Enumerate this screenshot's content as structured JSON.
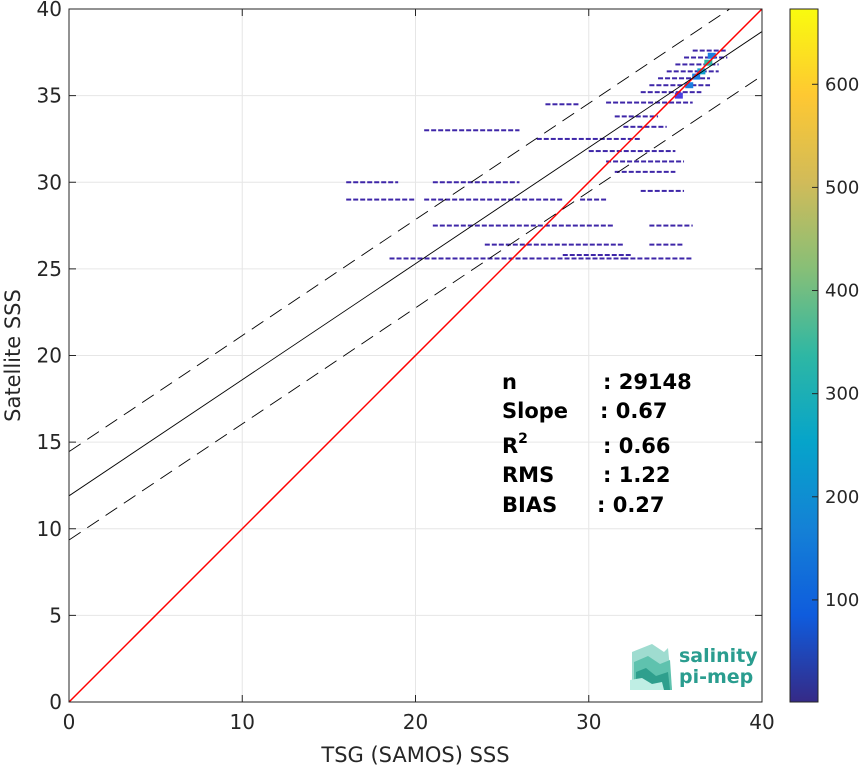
{
  "chart_data": {
    "type": "heatmap",
    "xlabel": "TSG (SAMOS) SSS",
    "ylabel": "Satellite SSS",
    "xlim": [
      0,
      40
    ],
    "ylim": [
      0,
      40
    ],
    "x_ticks": [
      0,
      10,
      20,
      30,
      40
    ],
    "y_ticks": [
      0,
      5,
      10,
      15,
      20,
      25,
      30,
      35,
      40
    ],
    "grid": true,
    "colorbar": {
      "range": [
        1,
        673
      ],
      "ticks": [
        100,
        200,
        300,
        400,
        500,
        600
      ],
      "colormap": "parula"
    },
    "lines": [
      {
        "name": "one-to-one",
        "slope": 1,
        "intercept": 0,
        "color": "#ff0000",
        "style": "solid"
      },
      {
        "name": "regression fit",
        "slope": 0.67,
        "intercept": 11.9,
        "color": "#000000",
        "style": "solid"
      },
      {
        "name": "upper bound",
        "slope": 0.67,
        "intercept": 14.45,
        "color": "#000000",
        "style": "dashed"
      },
      {
        "name": "lower bound",
        "slope": 0.67,
        "intercept": 9.35,
        "color": "#000000",
        "style": "dashed"
      }
    ],
    "segments": [
      {
        "x": [
          16.0,
          19.0
        ],
        "y": 30.0
      },
      {
        "x": [
          21.0,
          26.0
        ],
        "y": 30.0
      },
      {
        "x": [
          16.0,
          20.0
        ],
        "y": 29.0
      },
      {
        "x": [
          20.5,
          28.5
        ],
        "y": 29.0
      },
      {
        "x": [
          29.5,
          31.0
        ],
        "y": 29.0
      },
      {
        "x": [
          21.0,
          31.5
        ],
        "y": 27.5
      },
      {
        "x": [
          33.5,
          36.0
        ],
        "y": 27.5
      },
      {
        "x": [
          24.0,
          32.0
        ],
        "y": 26.4
      },
      {
        "x": [
          33.5,
          35.5
        ],
        "y": 26.4
      },
      {
        "x": [
          18.5,
          32.0
        ],
        "y": 25.6
      },
      {
        "x": [
          32.0,
          36.0
        ],
        "y": 25.6
      },
      {
        "x": [
          28.5,
          32.5
        ],
        "y": 25.8
      },
      {
        "x": [
          33.0,
          35.5
        ],
        "y": 29.5
      },
      {
        "x": [
          20.5,
          26.0
        ],
        "y": 33.0
      },
      {
        "x": [
          27.0,
          33.0
        ],
        "y": 32.5
      },
      {
        "x": [
          30.0,
          35.0
        ],
        "y": 31.8
      },
      {
        "x": [
          31.0,
          35.5
        ],
        "y": 31.2
      },
      {
        "x": [
          31.5,
          35.0
        ],
        "y": 30.6
      },
      {
        "x": [
          27.5,
          29.5
        ],
        "y": 34.5
      },
      {
        "x": [
          31.0,
          36.0
        ],
        "y": 34.6
      },
      {
        "x": [
          31.5,
          34.0
        ],
        "y": 33.8
      },
      {
        "x": [
          32.0,
          34.5
        ],
        "y": 33.2
      },
      {
        "x": [
          33.0,
          36.5
        ],
        "y": 35.2
      },
      {
        "x": [
          33.5,
          37.0
        ],
        "y": 35.6
      },
      {
        "x": [
          34.0,
          37.0
        ],
        "y": 36.0
      },
      {
        "x": [
          34.5,
          37.5
        ],
        "y": 36.4
      },
      {
        "x": [
          35.0,
          37.5
        ],
        "y": 36.8
      },
      {
        "x": [
          35.5,
          38.0
        ],
        "y": 37.2
      },
      {
        "x": [
          36.0,
          38.0
        ],
        "y": 37.6
      }
    ],
    "hot_cells": [
      {
        "x": 36.9,
        "y": 36.9,
        "count": 420
      },
      {
        "x": 36.5,
        "y": 36.4,
        "count": 260
      },
      {
        "x": 37.1,
        "y": 37.3,
        "count": 210
      },
      {
        "x": 35.8,
        "y": 35.6,
        "count": 150
      },
      {
        "x": 36.2,
        "y": 36.1,
        "count": 130
      },
      {
        "x": 35.2,
        "y": 35.0,
        "count": 90
      }
    ]
  },
  "stats": {
    "n": {
      "label": "n",
      "value": ": 29148"
    },
    "slope": {
      "label": "Slope",
      "value": ": 0.67"
    },
    "r2": {
      "label": "R",
      "sup": "2",
      "value": ": 0.66"
    },
    "rms": {
      "label": "RMS",
      "value": ": 1.22"
    },
    "bias": {
      "label": "BIAS",
      "value": ": 0.27"
    }
  },
  "logo": {
    "line1": "salinity",
    "line2": "pi-mep"
  },
  "colors": {
    "one_to_one": "#ff0000",
    "fit": "#000000",
    "grid": "#e6e6e6",
    "axis": "#262626",
    "logo": "#2a9d8f"
  }
}
